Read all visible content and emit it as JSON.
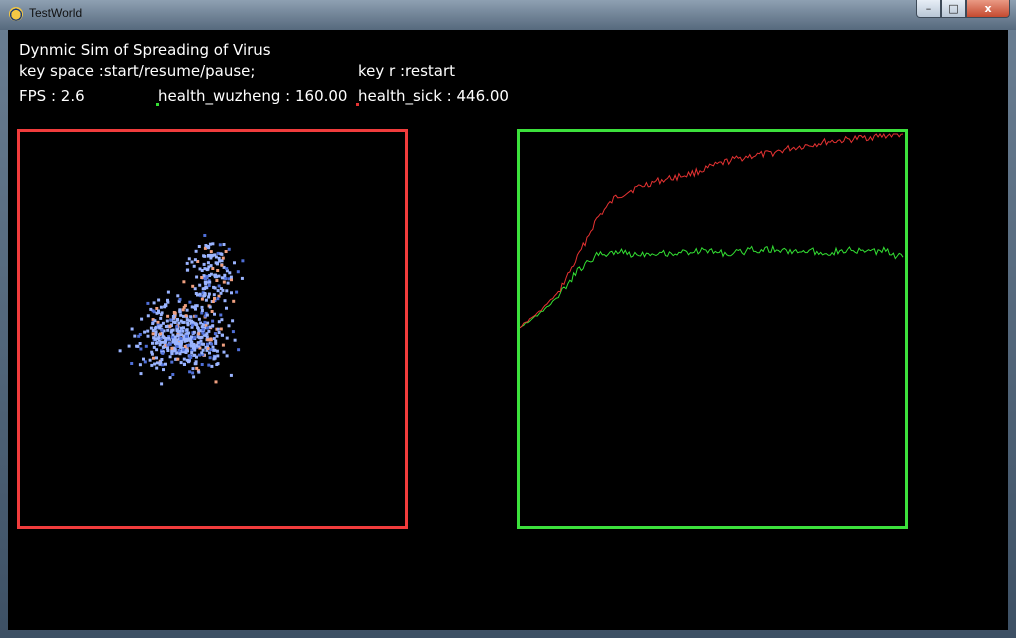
{
  "window": {
    "title": "TestWorld",
    "min_glyph": "–",
    "max_glyph": "□",
    "close_glyph": "x"
  },
  "text": {
    "heading": "Dynmic Sim of Spreading of Virus",
    "key_space": "key space :start/resume/pause;",
    "key_r": "key r :restart",
    "fps": "FPS : 2.6",
    "health_wuzheng": "health_wuzheng : 160.00",
    "health_sick": "health_sick : 446.00"
  },
  "colors": {
    "wuzheng_line": "#33e033",
    "sick_line": "#e63232",
    "sim_border": "#f03c3c",
    "chart_border": "#3ce03c",
    "particle_healthy": "#9ab4ff",
    "particle_dark": "#4f6fd8",
    "particle_sick": "#f0a080"
  },
  "chart_data": {
    "type": "line",
    "series": [
      {
        "name": "health_sick",
        "color": "#e63232",
        "values": [
          0,
          35,
          80,
          160,
          250,
          300,
          320,
          335,
          345,
          355,
          370,
          385,
          395,
          400,
          412,
          420,
          428,
          432,
          438,
          442,
          446
        ]
      },
      {
        "name": "health_wuzheng",
        "color": "#33e033",
        "values": [
          0,
          30,
          70,
          130,
          165,
          175,
          168,
          172,
          170,
          175,
          176,
          168,
          178,
          180,
          175,
          176,
          172,
          178,
          174,
          176,
          160
        ]
      }
    ],
    "ylim": [
      0,
      600
    ]
  }
}
